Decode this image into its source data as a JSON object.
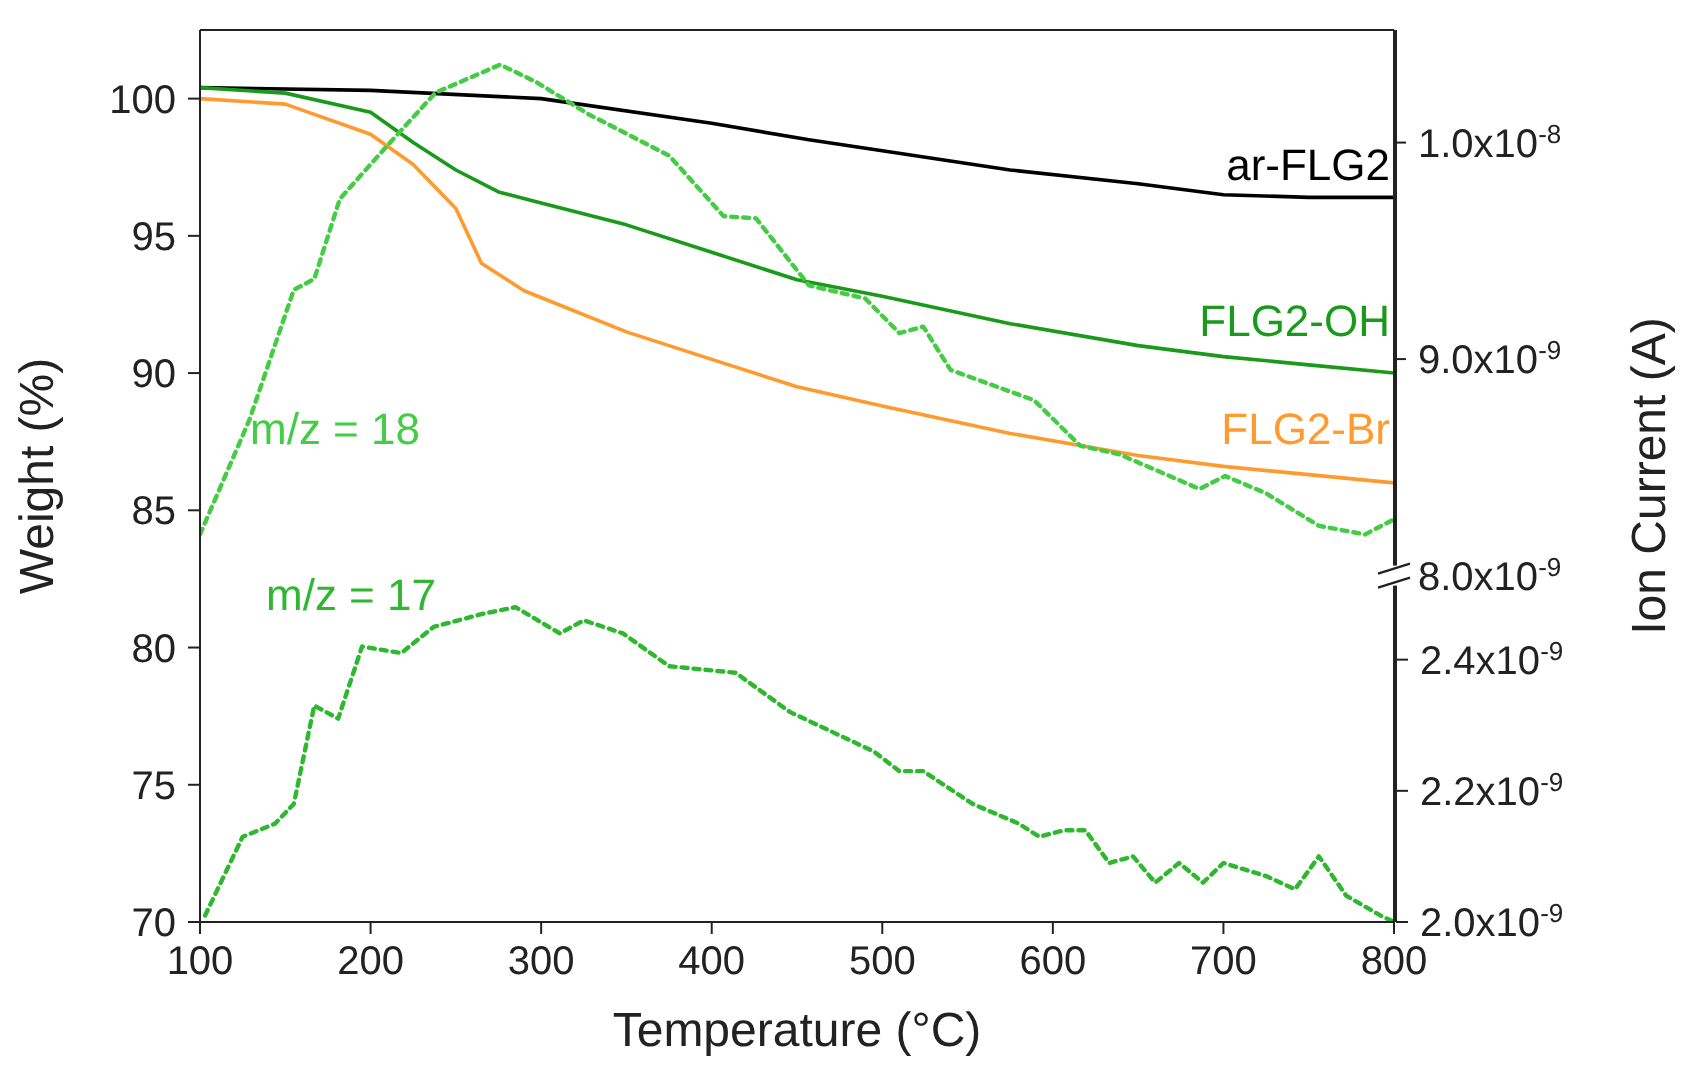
{
  "chart_data": {
    "type": "line",
    "xlabel": "Temperature (°C)",
    "ylabel": "Weight (%)",
    "y2label": "Ion Current (A)",
    "xlim": [
      100,
      800
    ],
    "xticks": [
      100,
      200,
      300,
      400,
      500,
      600,
      700,
      800
    ],
    "ylim": [
      70,
      102.5
    ],
    "yticks": [
      70,
      75,
      80,
      85,
      90,
      95,
      100
    ],
    "y2lim": [
      6.4e-09,
      1.052e-08
    ],
    "y2ticks": [
      {
        "value": 8e-09,
        "label": "8.0x10$^{-9}$"
      },
      {
        "value": 9e-09,
        "label": "9.0x10$^{-9}$"
      },
      {
        "value": 1e-08,
        "label": "1.0x10$^{-8}$"
      }
    ],
    "y3lim": [
      2e-09,
      3.36e-09
    ],
    "y3ticks": [
      {
        "value": 2e-09,
        "label": "2.0x10$^{-9}$"
      },
      {
        "value": 2.2e-09,
        "label": "2.2x10$^{-9}$"
      },
      {
        "value": 2.4e-09,
        "label": "2.4x10$^{-9}$"
      }
    ],
    "grid": false,
    "legend": false,
    "marker": "none",
    "series": [
      {
        "name": "ar-FLG2",
        "color": "#000000",
        "line_style": "solid",
        "x": [
          100,
          200,
          300,
          400,
          457,
          500,
          575,
          650,
          700,
          750,
          800
        ],
        "values": [
          100.4,
          100.3,
          100.0,
          99.1,
          98.5,
          98.1,
          97.4,
          96.9,
          96.5,
          96.4,
          96.4
        ]
      },
      {
        "name": "FLG2-OH",
        "color": "#1a9a1a",
        "line_style": "solid",
        "x": [
          100,
          150,
          200,
          225,
          250,
          275,
          300,
          350,
          400,
          450,
          500,
          575,
          650,
          700,
          750,
          800
        ],
        "values": [
          100.4,
          100.2,
          99.5,
          98.4,
          97.4,
          96.6,
          96.2,
          95.4,
          94.4,
          93.4,
          92.8,
          91.8,
          91.0,
          90.6,
          90.3,
          90.0
        ]
      },
      {
        "name": "FLG2-Br",
        "color": "#ff9a2e",
        "line_style": "solid",
        "x": [
          100,
          150,
          200,
          225,
          250,
          265,
          290,
          350,
          400,
          450,
          500,
          575,
          650,
          700,
          750,
          800
        ],
        "values": [
          100.0,
          99.8,
          98.7,
          97.6,
          96.0,
          94.0,
          93.0,
          91.5,
          90.5,
          89.5,
          88.8,
          87.8,
          87.0,
          86.6,
          86.3,
          86.0
        ]
      },
      {
        "name": "m/z = 18",
        "color": "#44cc44",
        "line_style": "dotted",
        "axis": "y2",
        "x": [
          100,
          129,
          155,
          167,
          182,
          208,
          238,
          276,
          297,
          328,
          375,
          407,
          426,
          457,
          490,
          510,
          524,
          540,
          589,
          616,
          639,
          686,
          701,
          725,
          756,
          783,
          800
        ],
        "values": [
          8.19e-09,
          8.72e-09,
          9.32e-09,
          9.37e-09,
          9.74e-09,
          9.97e-09,
          1.023e-08,
          1.036e-08,
          1.028e-08,
          1.013e-08,
          9.94e-09,
          9.66e-09,
          9.65e-09,
          9.34e-09,
          9.28e-09,
          9.12e-09,
          9.15e-09,
          8.95e-09,
          8.81e-09,
          8.6e-09,
          8.56e-09,
          8.4e-09,
          8.46e-09,
          8.38e-09,
          8.23e-09,
          8.19e-09,
          8.26e-09
        ]
      },
      {
        "name": "m/z = 17",
        "color": "#2fb82f",
        "line_style": "dotted",
        "axis": "y3",
        "x": [
          103,
          125,
          144,
          155,
          167,
          181,
          195,
          218,
          237,
          266,
          285,
          311,
          325,
          348,
          375,
          414,
          446,
          495,
          510,
          524,
          553,
          580,
          592,
          607,
          619,
          633,
          647,
          660,
          674,
          688,
          700,
          725,
          742,
          756,
          772,
          792,
          800
        ],
        "values": [
          2.01e-09,
          2.13e-09,
          2.15e-09,
          2.18e-09,
          2.33e-09,
          2.31e-09,
          2.42e-09,
          2.41e-09,
          2.45e-09,
          2.47e-09,
          2.48e-09,
          2.44e-09,
          2.46e-09,
          2.44e-09,
          2.39e-09,
          2.38e-09,
          2.32e-09,
          2.26e-09,
          2.23e-09,
          2.23e-09,
          2.18e-09,
          2.15e-09,
          2.13e-09,
          2.14e-09,
          2.14e-09,
          2.09e-09,
          2.1e-09,
          2.06e-09,
          2.09e-09,
          2.06e-09,
          2.09e-09,
          2.07e-09,
          2.05e-09,
          2.1e-09,
          2.04e-09,
          2.01e-09,
          2e-09
        ]
      }
    ]
  }
}
